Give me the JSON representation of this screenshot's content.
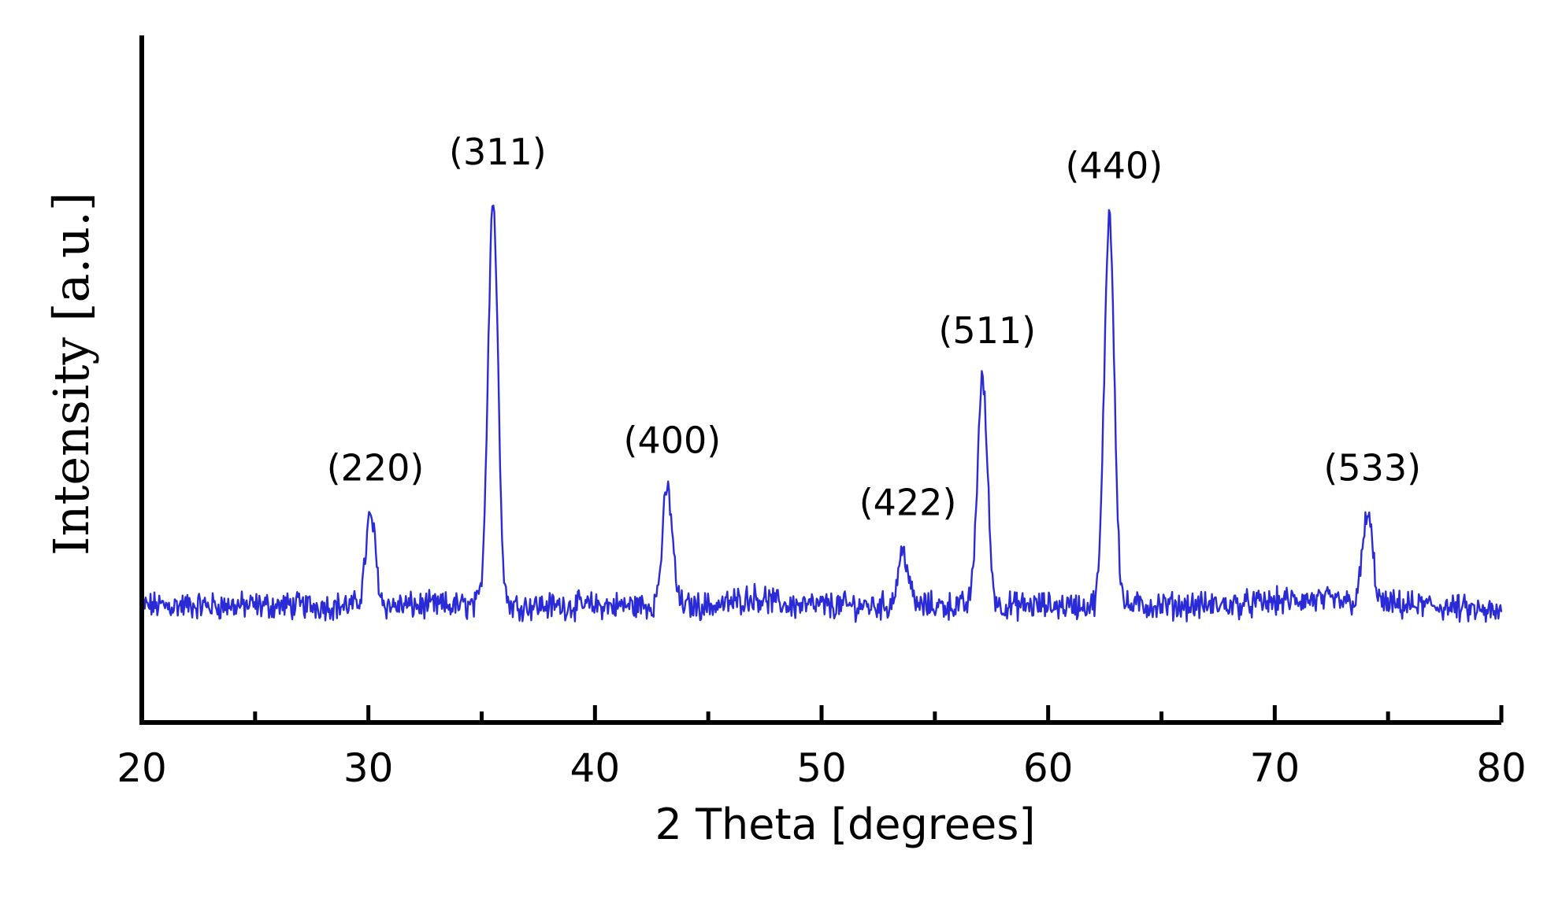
{
  "chart_data": {
    "type": "line",
    "xlabel": "2 Theta  [degrees]",
    "ylabel": "Intensity    [a.u.]",
    "xlim": [
      20,
      80
    ],
    "ylim": [
      0,
      100
    ],
    "x_ticks": [
      "20",
      "30",
      "40",
      "50",
      "60",
      "70",
      "80"
    ],
    "line_color": "#2a2ad6",
    "baseline": 17,
    "noise_amplitude": 1.6,
    "peaks": [
      {
        "label": "(220)",
        "x": 30.1,
        "height": 13
      },
      {
        "label": "(311)",
        "x": 35.5,
        "height": 59
      },
      {
        "label": "(400)",
        "x": 43.2,
        "height": 17
      },
      {
        "label": "(422)",
        "x": 53.6,
        "height": 8
      },
      {
        "label": "(511)",
        "x": 57.1,
        "height": 33
      },
      {
        "label": "(440)",
        "x": 62.7,
        "height": 57
      },
      {
        "label": "(533)",
        "x": 74.1,
        "height": 13
      }
    ],
    "grid": false,
    "legend": "none"
  }
}
